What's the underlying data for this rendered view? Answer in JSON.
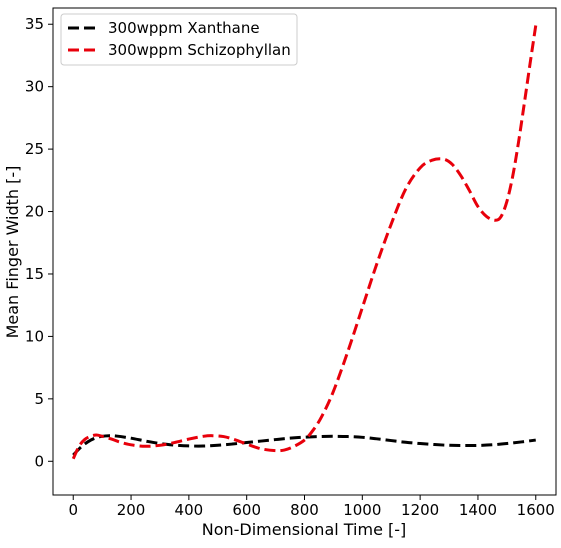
{
  "chart_data": {
    "type": "line",
    "title": "",
    "xlabel": "Non-Dimensional Time [-]",
    "ylabel": "Mean Finger Width [-]",
    "xlim": [
      -70,
      1670
    ],
    "ylim": [
      -2.7,
      36.3
    ],
    "xticks": [
      0,
      200,
      400,
      600,
      800,
      1000,
      1200,
      1400,
      1600
    ],
    "xtick_labels": [
      "0",
      "200",
      "400",
      "600",
      "800",
      "1000",
      "1200",
      "1400",
      "1600"
    ],
    "yticks": [
      0,
      5,
      10,
      15,
      20,
      25,
      30,
      35
    ],
    "ytick_labels": [
      "0",
      "5",
      "10",
      "15",
      "20",
      "25",
      "30",
      "35"
    ],
    "grid": false,
    "legend_position": "upper-left",
    "series": [
      {
        "name": "300wppm Xanthane",
        "color": "#000000",
        "linestyle": "dashed",
        "x": [
          0,
          25,
          50,
          75,
          100,
          125,
          150,
          200,
          250,
          300,
          350,
          400,
          450,
          500,
          550,
          600,
          650,
          700,
          750,
          800,
          850,
          900,
          950,
          1000,
          1050,
          1100,
          1150,
          1200,
          1250,
          1300,
          1350,
          1400,
          1450,
          1500,
          1550,
          1600
        ],
        "y": [
          0.5,
          1.1,
          1.55,
          1.85,
          2.0,
          2.05,
          2.02,
          1.85,
          1.62,
          1.42,
          1.3,
          1.23,
          1.22,
          1.28,
          1.38,
          1.5,
          1.62,
          1.74,
          1.85,
          1.93,
          1.98,
          2.0,
          1.98,
          1.92,
          1.8,
          1.66,
          1.52,
          1.42,
          1.34,
          1.28,
          1.26,
          1.27,
          1.32,
          1.42,
          1.55,
          1.7
        ]
      },
      {
        "name": "300wppm Schizophyllan",
        "color": "#e8000b",
        "linestyle": "dashed",
        "x": [
          0,
          20,
          40,
          60,
          80,
          100,
          130,
          160,
          200,
          250,
          300,
          350,
          400,
          450,
          480,
          520,
          560,
          600,
          650,
          700,
          730,
          760,
          800,
          830,
          860,
          900,
          950,
          1000,
          1050,
          1100,
          1150,
          1200,
          1240,
          1280,
          1310,
          1340,
          1370,
          1400,
          1430,
          1460,
          1480,
          1500,
          1520,
          1540,
          1560,
          1580,
          1600
        ],
        "y": [
          0.2,
          1.2,
          1.75,
          2.0,
          2.1,
          2.0,
          1.8,
          1.55,
          1.32,
          1.2,
          1.28,
          1.5,
          1.78,
          2.0,
          2.05,
          1.98,
          1.72,
          1.38,
          1.0,
          0.85,
          0.9,
          1.15,
          1.7,
          2.5,
          3.6,
          5.6,
          8.8,
          12.3,
          15.8,
          19.0,
          21.8,
          23.5,
          24.1,
          24.2,
          23.8,
          22.9,
          21.7,
          20.4,
          19.6,
          19.3,
          19.6,
          20.8,
          22.8,
          25.5,
          28.6,
          31.8,
          34.9
        ]
      }
    ]
  }
}
